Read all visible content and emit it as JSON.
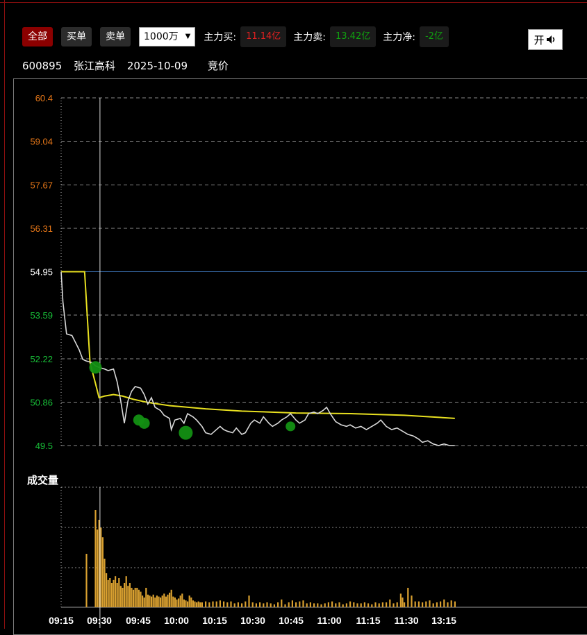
{
  "toolbar": {
    "filters": [
      "全部",
      "买单",
      "卖单"
    ],
    "amount": "1000万",
    "buy_label": "主力买:",
    "buy_value": "11.14亿",
    "sell_label": "主力卖:",
    "sell_value": "13.42亿",
    "net_label": "主力净:",
    "net_value": "-2亿",
    "sound_label": "开"
  },
  "info": {
    "code": "600895",
    "name": "张江高科",
    "date": "2025-10-09",
    "mode": "竞价"
  },
  "colors": {
    "price_line": "#d9d9d9",
    "avg_line": "#e8e020",
    "prev_close_line": "#3a6fb0",
    "up_label": "#e87818",
    "down_label": "#18c038",
    "volume_bar": "#d9a030",
    "big_order_marker": "#139013"
  },
  "chart_data": {
    "type": "line",
    "y_ticks": [
      "60.4",
      "59.04",
      "57.67",
      "56.31",
      "54.95",
      "53.59",
      "52.22",
      "50.86",
      "49.5"
    ],
    "x_ticks": [
      "09:15",
      "09:30",
      "09:45",
      "10:00",
      "10:15",
      "10:30",
      "10:45",
      "11:00",
      "11:15",
      "11:30",
      "13:15"
    ],
    "ylim": [
      49.5,
      60.4
    ],
    "prev_close": 54.95,
    "volume_title": "成交量",
    "price_series": [
      [
        0,
        54.95
      ],
      [
        1,
        54.0
      ],
      [
        3,
        53.0
      ],
      [
        6,
        52.95
      ],
      [
        10,
        52.5
      ],
      [
        12,
        52.2
      ],
      [
        14,
        52.15
      ],
      [
        17,
        52.1
      ],
      [
        19,
        52.0
      ],
      [
        21,
        51.95
      ],
      [
        24,
        51.9
      ],
      [
        26,
        51.85
      ],
      [
        29,
        51.9
      ],
      [
        31,
        51.5
      ],
      [
        33,
        50.9
      ],
      [
        35,
        50.2
      ],
      [
        37,
        50.9
      ],
      [
        39,
        51.2
      ],
      [
        41,
        51.35
      ],
      [
        44,
        51.3
      ],
      [
        46,
        51.1
      ],
      [
        48,
        50.8
      ],
      [
        50,
        51.0
      ],
      [
        52,
        50.7
      ],
      [
        55,
        50.6
      ],
      [
        57,
        50.45
      ],
      [
        60,
        50.35
      ],
      [
        61,
        50.0
      ],
      [
        63,
        50.3
      ],
      [
        66,
        50.35
      ],
      [
        68,
        50.2
      ],
      [
        70,
        50.5
      ],
      [
        73,
        50.4
      ],
      [
        75,
        50.3
      ],
      [
        78,
        50.1
      ],
      [
        80,
        49.9
      ],
      [
        83,
        49.85
      ],
      [
        85,
        49.95
      ],
      [
        88,
        50.1
      ],
      [
        90,
        50.0
      ],
      [
        92,
        49.95
      ],
      [
        95,
        49.9
      ],
      [
        97,
        50.05
      ],
      [
        100,
        49.85
      ],
      [
        102,
        49.9
      ],
      [
        105,
        50.2
      ],
      [
        107,
        50.3
      ],
      [
        110,
        50.2
      ],
      [
        112,
        50.4
      ],
      [
        115,
        50.2
      ],
      [
        117,
        50.1
      ],
      [
        120,
        50.2
      ],
      [
        122,
        50.3
      ],
      [
        125,
        50.4
      ],
      [
        127,
        50.5
      ],
      [
        130,
        50.3
      ],
      [
        132,
        50.2
      ],
      [
        135,
        50.3
      ],
      [
        137,
        50.5
      ],
      [
        140,
        50.55
      ],
      [
        142,
        50.5
      ],
      [
        145,
        50.6
      ],
      [
        147,
        50.7
      ],
      [
        149,
        50.5
      ],
      [
        152,
        50.25
      ],
      [
        155,
        50.15
      ],
      [
        158,
        50.1
      ],
      [
        160,
        50.15
      ],
      [
        163,
        50.05
      ],
      [
        166,
        50.1
      ],
      [
        169,
        50.0
      ],
      [
        172,
        50.1
      ],
      [
        175,
        50.2
      ],
      [
        177,
        50.3
      ],
      [
        180,
        50.1
      ],
      [
        183,
        50.0
      ],
      [
        186,
        50.05
      ],
      [
        189,
        49.95
      ],
      [
        192,
        49.85
      ],
      [
        195,
        49.8
      ],
      [
        198,
        49.7
      ],
      [
        200,
        49.6
      ],
      [
        203,
        49.65
      ],
      [
        206,
        49.55
      ],
      [
        209,
        49.5
      ],
      [
        212,
        49.55
      ],
      [
        215,
        49.5
      ],
      [
        218,
        49.5
      ]
    ],
    "avg_series": [
      [
        0,
        54.95
      ],
      [
        13,
        54.95
      ],
      [
        16,
        52.1
      ],
      [
        19,
        51.45
      ],
      [
        21,
        51.0
      ],
      [
        24,
        51.05
      ],
      [
        29,
        51.1
      ],
      [
        34,
        51.05
      ],
      [
        40,
        50.95
      ],
      [
        48,
        50.85
      ],
      [
        60,
        50.75
      ],
      [
        80,
        50.65
      ],
      [
        100,
        50.58
      ],
      [
        130,
        50.52
      ],
      [
        160,
        50.5
      ],
      [
        190,
        50.45
      ],
      [
        210,
        50.38
      ],
      [
        218,
        50.35
      ]
    ],
    "big_orders": [
      {
        "t": 19,
        "price": 51.95,
        "r": 9
      },
      {
        "t": 43,
        "price": 50.3,
        "r": 8
      },
      {
        "t": 46,
        "price": 50.2,
        "r": 8
      },
      {
        "t": 69,
        "price": 49.9,
        "r": 10
      },
      {
        "t": 127,
        "price": 50.1,
        "r": 7
      }
    ],
    "volume": [
      [
        14,
        0.55
      ],
      [
        19,
        1.0
      ],
      [
        20,
        0.8
      ],
      [
        21,
        0.9
      ],
      [
        22,
        0.82
      ],
      [
        23,
        0.72
      ],
      [
        24,
        0.5
      ],
      [
        25,
        0.35
      ],
      [
        26,
        0.28
      ],
      [
        27,
        0.3
      ],
      [
        28,
        0.25
      ],
      [
        29,
        0.28
      ],
      [
        30,
        0.32
      ],
      [
        31,
        0.25
      ],
      [
        32,
        0.3
      ],
      [
        33,
        0.22
      ],
      [
        34,
        0.2
      ],
      [
        35,
        0.25
      ],
      [
        36,
        0.32
      ],
      [
        37,
        0.22
      ],
      [
        38,
        0.25
      ],
      [
        39,
        0.2
      ],
      [
        40,
        0.18
      ],
      [
        41,
        0.2
      ],
      [
        42,
        0.2
      ],
      [
        43,
        0.18
      ],
      [
        44,
        0.16
      ],
      [
        45,
        0.12
      ],
      [
        46,
        0.1
      ],
      [
        47,
        0.2
      ],
      [
        48,
        0.13
      ],
      [
        49,
        0.12
      ],
      [
        50,
        0.11
      ],
      [
        51,
        0.13
      ],
      [
        52,
        0.1
      ],
      [
        53,
        0.12
      ],
      [
        54,
        0.11
      ],
      [
        55,
        0.1
      ],
      [
        56,
        0.12
      ],
      [
        57,
        0.14
      ],
      [
        58,
        0.11
      ],
      [
        59,
        0.13
      ],
      [
        60,
        0.15
      ],
      [
        61,
        0.18
      ],
      [
        62,
        0.11
      ],
      [
        63,
        0.1
      ],
      [
        64,
        0.08
      ],
      [
        65,
        0.09
      ],
      [
        66,
        0.12
      ],
      [
        67,
        0.14
      ],
      [
        68,
        0.08
      ],
      [
        69,
        0.07
      ],
      [
        70,
        0.06
      ],
      [
        71,
        0.12
      ],
      [
        72,
        0.1
      ],
      [
        73,
        0.07
      ],
      [
        74,
        0.06
      ],
      [
        75,
        0.05
      ],
      [
        76,
        0.06
      ],
      [
        77,
        0.05
      ],
      [
        78,
        0.05
      ],
      [
        80,
        0.06
      ],
      [
        82,
        0.05
      ],
      [
        84,
        0.06
      ],
      [
        86,
        0.06
      ],
      [
        88,
        0.07
      ],
      [
        90,
        0.06
      ],
      [
        92,
        0.05
      ],
      [
        94,
        0.06
      ],
      [
        96,
        0.04
      ],
      [
        98,
        0.05
      ],
      [
        100,
        0.04
      ],
      [
        102,
        0.06
      ],
      [
        104,
        0.12
      ],
      [
        106,
        0.05
      ],
      [
        108,
        0.04
      ],
      [
        110,
        0.05
      ],
      [
        112,
        0.04
      ],
      [
        114,
        0.05
      ],
      [
        116,
        0.04
      ],
      [
        118,
        0.03
      ],
      [
        120,
        0.05
      ],
      [
        122,
        0.08
      ],
      [
        124,
        0.03
      ],
      [
        126,
        0.05
      ],
      [
        128,
        0.07
      ],
      [
        130,
        0.05
      ],
      [
        132,
        0.06
      ],
      [
        134,
        0.07
      ],
      [
        136,
        0.04
      ],
      [
        138,
        0.05
      ],
      [
        140,
        0.04
      ],
      [
        142,
        0.04
      ],
      [
        144,
        0.03
      ],
      [
        146,
        0.04
      ],
      [
        148,
        0.05
      ],
      [
        150,
        0.06
      ],
      [
        152,
        0.04
      ],
      [
        154,
        0.05
      ],
      [
        156,
        0.03
      ],
      [
        158,
        0.04
      ],
      [
        160,
        0.06
      ],
      [
        162,
        0.05
      ],
      [
        164,
        0.04
      ],
      [
        166,
        0.04
      ],
      [
        168,
        0.05
      ],
      [
        170,
        0.04
      ],
      [
        172,
        0.03
      ],
      [
        174,
        0.05
      ],
      [
        176,
        0.04
      ],
      [
        178,
        0.05
      ],
      [
        180,
        0.05
      ],
      [
        182,
        0.08
      ],
      [
        184,
        0.04
      ],
      [
        186,
        0.05
      ],
      [
        188,
        0.14
      ],
      [
        189,
        0.1
      ],
      [
        190,
        0.05
      ],
      [
        192,
        0.2
      ],
      [
        194,
        0.12
      ],
      [
        196,
        0.06
      ],
      [
        198,
        0.06
      ],
      [
        200,
        0.05
      ],
      [
        202,
        0.06
      ],
      [
        204,
        0.07
      ],
      [
        206,
        0.04
      ],
      [
        208,
        0.05
      ],
      [
        210,
        0.06
      ],
      [
        212,
        0.08
      ],
      [
        214,
        0.05
      ],
      [
        216,
        0.07
      ],
      [
        218,
        0.06
      ]
    ]
  }
}
